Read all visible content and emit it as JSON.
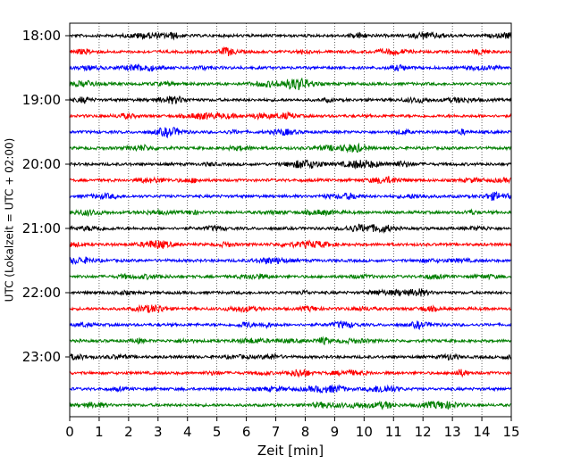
{
  "chart_data": {
    "type": "line",
    "title": "",
    "xlabel": "Zeit  [min]",
    "ylabel": "UTC (Lokalzeit = UTC + 02:00)",
    "xlim": [
      0,
      15
    ],
    "x_ticks": [
      0,
      1,
      2,
      3,
      4,
      5,
      6,
      7,
      8,
      9,
      10,
      11,
      12,
      13,
      14,
      15
    ],
    "x_grid": true,
    "y_ticks": [
      "18:00",
      "19:00",
      "20:00",
      "21:00",
      "22:00",
      "23:00"
    ],
    "y_tick_hours": [
      18,
      19,
      20,
      21,
      22,
      23
    ],
    "trace_interval_min": 15,
    "first_trace_hour": 18,
    "trace_count": 24,
    "trace_colors": [
      "#000000",
      "#ff0000",
      "#0000ff",
      "#007f00"
    ],
    "series_description": "helicorder seismogram traces, one line per 15 minutes from 18:00 to 23:45 UTC"
  }
}
